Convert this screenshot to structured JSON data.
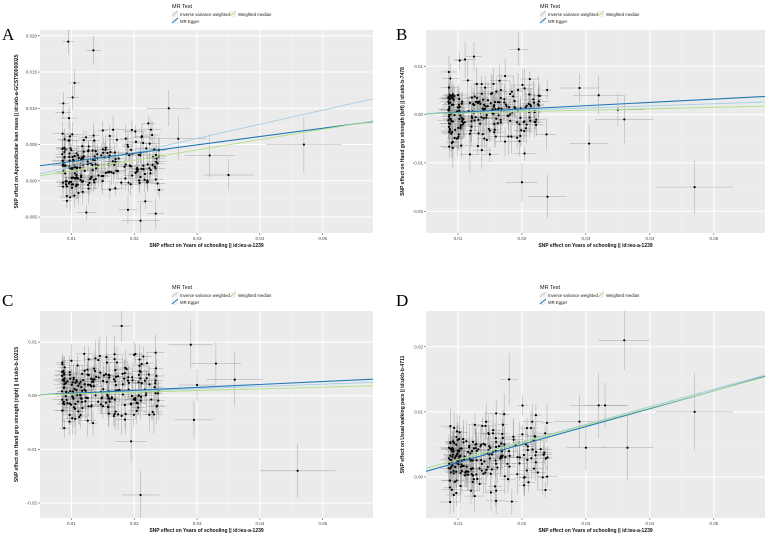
{
  "legend": {
    "title": "MR Test",
    "entries": [
      {
        "name": "Inverse variance weighted",
        "color": "#a6cee3"
      },
      {
        "name": "MR Egger",
        "color": "#1f78b4"
      },
      {
        "name": "Weighted median",
        "color": "#b2df8a"
      }
    ]
  },
  "chart_data": [
    {
      "type": "scatter",
      "panel_label": "A",
      "xlabel": "SNP effect on Years of schooling || id:ieu-a-1239",
      "ylabel": "SNP effect on Appendicular lean mass || id:ukb-a-GCST90000025",
      "xlim": [
        0.005,
        0.058
      ],
      "ylim": [
        -0.0072,
        0.0208
      ],
      "xticks": [
        0.01,
        0.02,
        0.03,
        0.04,
        0.05
      ],
      "xtick_labels": [
        "0.01",
        "0.02",
        "0.03",
        "0.04",
        "0.05"
      ],
      "yticks": [
        -0.005,
        0.0,
        0.005,
        0.01,
        0.015,
        0.02
      ],
      "ytick_labels": [
        "-0.005",
        "0.000",
        "0.005",
        "0.010",
        "0.015",
        "0.020"
      ],
      "cloud": {
        "n": 230,
        "seed": 11,
        "x_range": [
          0.0085,
          0.024
        ],
        "y_center": 0.002,
        "y_sd": 0.0025,
        "x_se": 0.0012,
        "y_se": 0.0014,
        "slope": 0.05
      },
      "points": [
        {
          "x": 0.0095,
          "y": 0.0192,
          "sx": 0.001,
          "sy": 0.0018
        },
        {
          "x": 0.0135,
          "y": 0.018,
          "sx": 0.0012,
          "sy": 0.002
        },
        {
          "x": 0.0105,
          "y": 0.0135,
          "sx": 0.001,
          "sy": 0.0018
        },
        {
          "x": 0.0102,
          "y": 0.0115,
          "sx": 0.001,
          "sy": 0.0017
        },
        {
          "x": 0.019,
          "y": -0.004,
          "sx": 0.0015,
          "sy": 0.002
        },
        {
          "x": 0.021,
          "y": -0.0055,
          "sx": 0.003,
          "sy": 0.0025
        },
        {
          "x": 0.027,
          "y": 0.0058,
          "sx": 0.0045,
          "sy": 0.003
        },
        {
          "x": 0.032,
          "y": 0.0035,
          "sx": 0.004,
          "sy": 0.003
        },
        {
          "x": 0.035,
          "y": 0.0008,
          "sx": 0.004,
          "sy": 0.0022
        },
        {
          "x": 0.047,
          "y": 0.005,
          "sx": 0.006,
          "sy": 0.0038
        },
        {
          "x": 0.0255,
          "y": 0.01,
          "sx": 0.0035,
          "sy": 0.0025
        }
      ],
      "lines": [
        {
          "method": "Inverse variance weighted",
          "intercept": 0.0,
          "slope": 0.195
        },
        {
          "method": "MR Egger",
          "intercept": 0.0015,
          "slope": 0.115
        },
        {
          "method": "Weighted median",
          "intercept": 0.0,
          "slope": 0.142
        }
      ]
    },
    {
      "type": "scatter",
      "panel_label": "B",
      "xlabel": "SNP effect on Years of schooling || id:ieu-a-1239",
      "ylabel": "SNP effect on Hand grip strength (left) || id:ukb-b-7478",
      "xlim": [
        0.005,
        0.058
      ],
      "ylim": [
        -0.0245,
        0.0175
      ],
      "xticks": [
        0.01,
        0.02,
        0.03,
        0.04,
        0.05
      ],
      "xtick_labels": [
        "0.01",
        "0.02",
        "0.03",
        "0.04",
        "0.05"
      ],
      "yticks": [
        -0.02,
        -0.01,
        0.0,
        0.01
      ],
      "ytick_labels": [
        "-0.02",
        "-0.01",
        "0.00",
        "0.01"
      ],
      "cloud": {
        "n": 230,
        "seed": 23,
        "x_range": [
          0.0085,
          0.024
        ],
        "y_center": 0.0005,
        "y_sd": 0.0035,
        "x_se": 0.0012,
        "y_se": 0.0028,
        "slope": 0.03
      },
      "points": [
        {
          "x": 0.0125,
          "y": 0.012,
          "sx": 0.0012,
          "sy": 0.003
        },
        {
          "x": 0.0195,
          "y": 0.0135,
          "sx": 0.0015,
          "sy": 0.0035
        },
        {
          "x": 0.02,
          "y": -0.014,
          "sx": 0.0025,
          "sy": 0.004
        },
        {
          "x": 0.024,
          "y": -0.017,
          "sx": 0.003,
          "sy": 0.0045
        },
        {
          "x": 0.0305,
          "y": -0.006,
          "sx": 0.003,
          "sy": 0.004
        },
        {
          "x": 0.032,
          "y": 0.004,
          "sx": 0.004,
          "sy": 0.004
        },
        {
          "x": 0.035,
          "y": 0.001,
          "sx": 0.004,
          "sy": 0.0035
        },
        {
          "x": 0.036,
          "y": -0.001,
          "sx": 0.0045,
          "sy": 0.005
        },
        {
          "x": 0.047,
          "y": -0.015,
          "sx": 0.006,
          "sy": 0.0055
        },
        {
          "x": 0.029,
          "y": 0.0055,
          "sx": 0.003,
          "sy": 0.003
        }
      ],
      "lines": [
        {
          "method": "Inverse variance weighted",
          "intercept": 0.0,
          "slope": 0.045
        },
        {
          "method": "MR Egger",
          "intercept": -0.0002,
          "slope": 0.068
        },
        {
          "method": "Weighted median",
          "intercept": 0.0,
          "slope": 0.03
        }
      ]
    },
    {
      "type": "scatter",
      "panel_label": "C",
      "xlabel": "SNP effect on Years of schooling || id:ieu-a-1239",
      "ylabel": "SNP effect on Hand grip strength (right) || id:ukb-b-10215",
      "xlim": [
        0.005,
        0.058
      ],
      "ylim": [
        -0.0228,
        0.0158
      ],
      "xticks": [
        0.01,
        0.02,
        0.03,
        0.04,
        0.05
      ],
      "xtick_labels": [
        "0.01",
        "0.02",
        "0.03",
        "0.04",
        "0.05"
      ],
      "yticks": [
        -0.02,
        -0.01,
        0.0,
        0.01
      ],
      "ytick_labels": [
        "-0.02",
        "-0.01",
        "0.00",
        "0.01"
      ],
      "cloud": {
        "n": 230,
        "seed": 37,
        "x_range": [
          0.0085,
          0.024
        ],
        "y_center": 0.0008,
        "y_sd": 0.0033,
        "x_se": 0.0012,
        "y_se": 0.0026,
        "slope": 0.03
      },
      "points": [
        {
          "x": 0.018,
          "y": 0.013,
          "sx": 0.0015,
          "sy": 0.003
        },
        {
          "x": 0.0195,
          "y": -0.0085,
          "sx": 0.0025,
          "sy": 0.004
        },
        {
          "x": 0.021,
          "y": -0.0185,
          "sx": 0.003,
          "sy": 0.0045
        },
        {
          "x": 0.029,
          "y": 0.0095,
          "sx": 0.0035,
          "sy": 0.0045
        },
        {
          "x": 0.0295,
          "y": -0.0045,
          "sx": 0.003,
          "sy": 0.0035
        },
        {
          "x": 0.03,
          "y": 0.002,
          "sx": 0.003,
          "sy": 0.003
        },
        {
          "x": 0.033,
          "y": 0.006,
          "sx": 0.004,
          "sy": 0.004
        },
        {
          "x": 0.036,
          "y": 0.003,
          "sx": 0.0045,
          "sy": 0.005
        },
        {
          "x": 0.046,
          "y": -0.014,
          "sx": 0.006,
          "sy": 0.005
        }
      ],
      "lines": [
        {
          "method": "Inverse variance weighted",
          "intercept": 0.0,
          "slope": 0.043
        },
        {
          "method": "MR Egger",
          "intercept": -0.0001,
          "slope": 0.055
        },
        {
          "method": "Weighted median",
          "intercept": 0.0,
          "slope": 0.032
        }
      ]
    },
    {
      "type": "scatter",
      "panel_label": "D",
      "xlabel": "SNP effect on Years of schooling || id:ieu-a-1239",
      "ylabel": "SNP effect on Usual walking pace || id:ukb-b-4711",
      "xlim": [
        0.005,
        0.058
      ],
      "ylim": [
        -0.0063,
        0.0255
      ],
      "xticks": [
        0.01,
        0.02,
        0.03,
        0.04,
        0.05
      ],
      "xtick_labels": [
        "0.01",
        "0.02",
        "0.03",
        "0.04",
        "0.05"
      ],
      "yticks": [
        0.0,
        0.01,
        0.02
      ],
      "ytick_labels": [
        "0.00",
        "0.01",
        "0.02"
      ],
      "cloud": {
        "n": 230,
        "seed": 53,
        "x_range": [
          0.0085,
          0.024
        ],
        "y_center": 0.0028,
        "y_sd": 0.0026,
        "x_se": 0.0012,
        "y_se": 0.0022,
        "slope": 0.15
      },
      "points": [
        {
          "x": 0.018,
          "y": 0.015,
          "sx": 0.0015,
          "sy": 0.004
        },
        {
          "x": 0.029,
          "y": 0.0085,
          "sx": 0.004,
          "sy": 0.004
        },
        {
          "x": 0.03,
          "y": 0.0045,
          "sx": 0.003,
          "sy": 0.0035
        },
        {
          "x": 0.032,
          "y": 0.011,
          "sx": 0.0045,
          "sy": 0.005
        },
        {
          "x": 0.036,
          "y": 0.021,
          "sx": 0.004,
          "sy": 0.0045
        },
        {
          "x": 0.0365,
          "y": 0.0045,
          "sx": 0.004,
          "sy": 0.005
        },
        {
          "x": 0.047,
          "y": 0.01,
          "sx": 0.006,
          "sy": 0.006
        },
        {
          "x": 0.033,
          "y": 0.011,
          "sx": 0.0035,
          "sy": 0.0035
        }
      ],
      "lines": [
        {
          "method": "Inverse variance weighted",
          "intercept": 0.0,
          "slope": 0.27
        },
        {
          "method": "MR Egger",
          "intercept": -0.0005,
          "slope": 0.275
        },
        {
          "method": "Weighted median",
          "intercept": 0.0,
          "slope": 0.265
        }
      ]
    }
  ]
}
